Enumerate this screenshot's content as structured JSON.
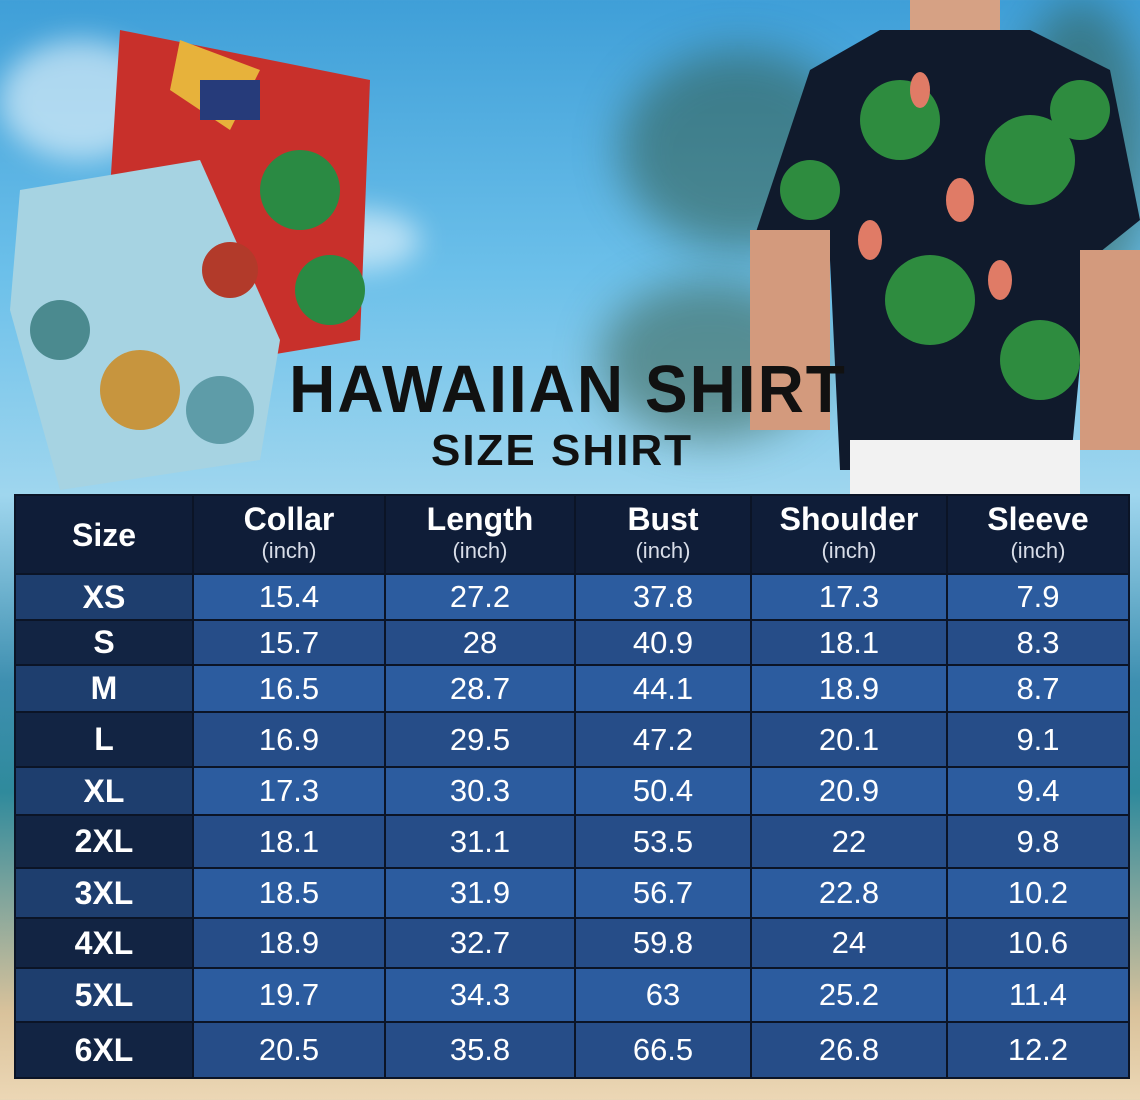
{
  "title": "HAWAIIAN SHIRT",
  "subtitle": "SIZE SHIRT",
  "table": {
    "headers": [
      {
        "label": "Size",
        "unit": ""
      },
      {
        "label": "Collar",
        "unit": "(inch)"
      },
      {
        "label": "Length",
        "unit": "(inch)"
      },
      {
        "label": "Bust",
        "unit": "(inch)"
      },
      {
        "label": "Shoulder",
        "unit": "(inch)"
      },
      {
        "label": "Sleeve",
        "unit": "(inch)"
      }
    ],
    "rows": [
      [
        "XS",
        "15.4",
        "27.2",
        "37.8",
        "17.3",
        "7.9"
      ],
      [
        "S",
        "15.7",
        "28",
        "40.9",
        "18.1",
        "8.3"
      ],
      [
        "M",
        "16.5",
        "28.7",
        "44.1",
        "18.9",
        "8.7"
      ],
      [
        "L",
        "16.9",
        "29.5",
        "47.2",
        "20.1",
        "9.1"
      ],
      [
        "XL",
        "17.3",
        "30.3",
        "50.4",
        "20.9",
        "9.4"
      ],
      [
        "2XL",
        "18.1",
        "31.1",
        "53.5",
        "22",
        "9.8"
      ],
      [
        "3XL",
        "18.5",
        "31.9",
        "56.7",
        "22.8",
        "10.2"
      ],
      [
        "4XL",
        "18.9",
        "32.7",
        "59.8",
        "24",
        "10.6"
      ],
      [
        "5XL",
        "19.7",
        "34.3",
        "63",
        "25.2",
        "11.4"
      ],
      [
        "6XL",
        "20.5",
        "35.8",
        "66.5",
        "26.8",
        "12.2"
      ]
    ]
  },
  "colors": {
    "header": "#0f1d38",
    "row_light": "#2c5c9f",
    "row_dark": "#264d88"
  }
}
